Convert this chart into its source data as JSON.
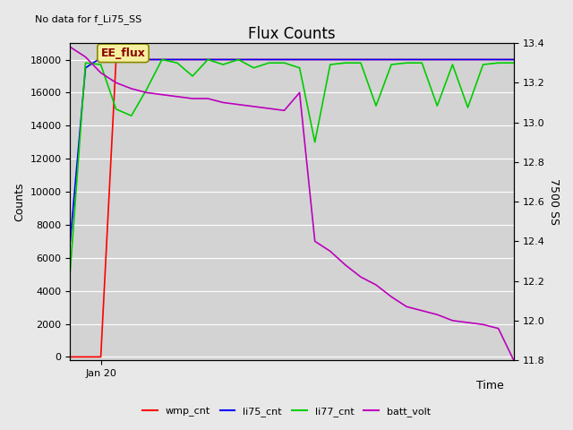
{
  "title": "Flux Counts",
  "top_left_text": "No data for f_Li75_SS",
  "xlabel": "Time",
  "ylabel_left": "Counts",
  "ylabel_right": "7500 SS",
  "annotation_text": "EE_flux",
  "background_color": "#e8e8e8",
  "plot_bg_color": "#d3d3d3",
  "ylim_left": [
    -200,
    19000
  ],
  "ylim_right": [
    11.8,
    13.4
  ],
  "yticks_left": [
    0,
    2000,
    4000,
    6000,
    8000,
    10000,
    12000,
    14000,
    16000,
    18000
  ],
  "yticks_right": [
    11.8,
    12.0,
    12.2,
    12.4,
    12.6,
    12.8,
    13.0,
    13.2,
    13.4
  ],
  "wmp_cnt_x": [
    0,
    1,
    2,
    3,
    4,
    5,
    6,
    7,
    8,
    9,
    10,
    11,
    12,
    13,
    14,
    15,
    16,
    17,
    18,
    19,
    20,
    21,
    22,
    23,
    24,
    25,
    26,
    27,
    28,
    29
  ],
  "wmp_cnt_y": [
    0,
    0,
    0,
    18000,
    18000,
    18000,
    18000,
    18000,
    18000,
    18000,
    18000,
    18000,
    18000,
    18000,
    18000,
    18000,
    18000,
    18000,
    18000,
    18000,
    18000,
    18000,
    18000,
    18000,
    18000,
    18000,
    18000,
    18000,
    18000,
    18000
  ],
  "li75_cnt_x": [
    0,
    1,
    2,
    3,
    4,
    5,
    6,
    7,
    8,
    9,
    10,
    11,
    12,
    13,
    14,
    15,
    16,
    17,
    18,
    19,
    20,
    21,
    22,
    23,
    24,
    25,
    26,
    27,
    28,
    29
  ],
  "li75_cnt_y": [
    7000,
    17500,
    18100,
    18000,
    18000,
    18000,
    18000,
    18000,
    18000,
    18000,
    18000,
    18000,
    18000,
    18000,
    18000,
    18000,
    18000,
    18000,
    18000,
    18000,
    18000,
    18000,
    18000,
    18000,
    18000,
    18000,
    18000,
    18000,
    18000,
    18000
  ],
  "li77_cnt_x": [
    0,
    1,
    2,
    3,
    4,
    5,
    6,
    7,
    8,
    9,
    10,
    11,
    12,
    13,
    14,
    15,
    16,
    17,
    18,
    19,
    20,
    21,
    22,
    23,
    24,
    25,
    26,
    27,
    28,
    29
  ],
  "li77_cnt_y": [
    5200,
    17800,
    17700,
    15000,
    14600,
    16200,
    18000,
    17800,
    17000,
    18000,
    17700,
    18000,
    17500,
    17800,
    17800,
    17500,
    13000,
    17700,
    17800,
    17800,
    15200,
    17700,
    17800,
    17800,
    15200,
    17700,
    15100,
    17700,
    17800,
    17800
  ],
  "batt_volt_x": [
    0,
    1,
    2,
    3,
    4,
    5,
    6,
    7,
    8,
    9,
    10,
    11,
    12,
    13,
    14,
    15,
    16,
    17,
    18,
    19,
    20,
    21,
    22,
    23,
    24,
    25,
    26,
    27,
    28,
    29
  ],
  "batt_volt_y": [
    13.38,
    13.33,
    13.25,
    13.2,
    13.17,
    13.15,
    13.14,
    13.13,
    13.12,
    13.12,
    13.1,
    13.09,
    13.08,
    13.07,
    13.06,
    13.15,
    12.4,
    12.35,
    12.28,
    12.22,
    12.18,
    12.12,
    12.07,
    12.05,
    12.03,
    12.0,
    11.99,
    11.98,
    11.96,
    11.8
  ],
  "wmp_color": "#ff0000",
  "li75_color": "#0000ff",
  "li77_color": "#00cc00",
  "batt_color": "#bb00bb",
  "legend_labels": [
    "wmp_cnt",
    "li75_cnt",
    "li77_cnt",
    "batt_volt"
  ],
  "xtick_label": "Jan 20",
  "xtick_pos": 2,
  "line_width": 1.2
}
